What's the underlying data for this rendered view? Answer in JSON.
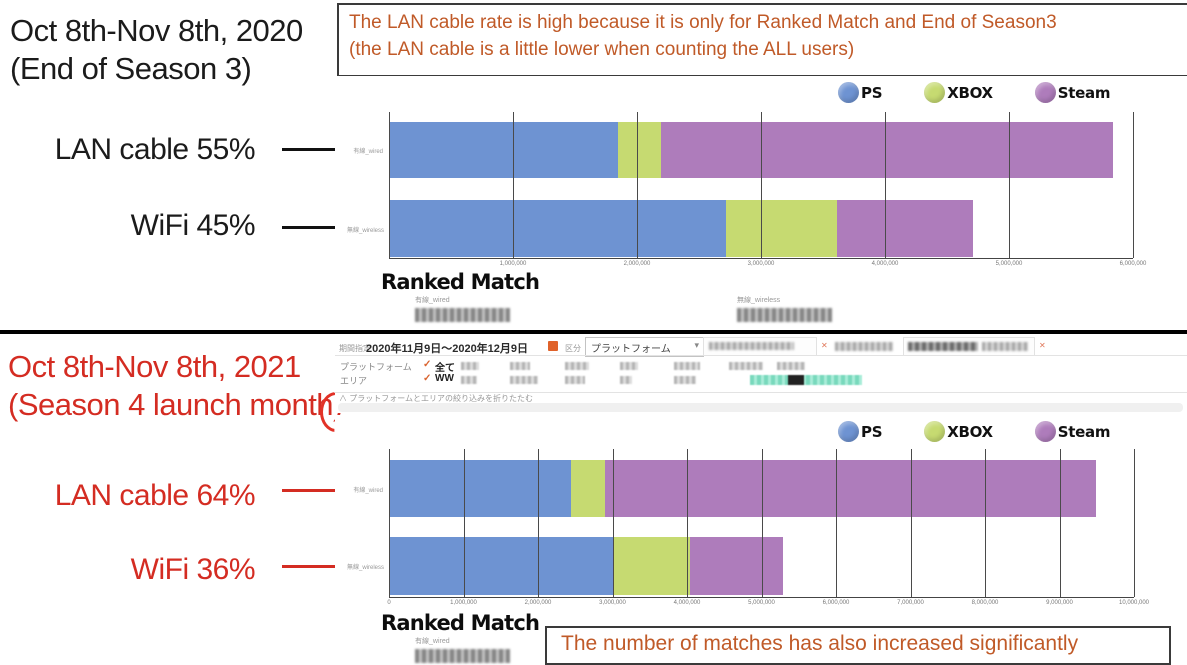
{
  "periods": {
    "p2020": {
      "line1": "Oct 8th-Nov 8th, 2020",
      "line2": "(End of Season 3)"
    },
    "p2021": {
      "line1": "Oct 8th-Nov 8th, 2021",
      "line2": "(Season 4 launch month)"
    }
  },
  "notes": {
    "top_line1": "The LAN cable rate is high because it is only for Ranked Match and End of Season3",
    "top_line2": "(the LAN cable is a little lower when counting the ALL users)",
    "bottom": "The number of matches has also increased significantly"
  },
  "callouts": {
    "lan_2020": "LAN cable 55%",
    "wifi_2020": "WiFi  45%",
    "lan_2021": "LAN cable 64%",
    "wifi_2021": "WiFi  36%"
  },
  "dashboard": {
    "period_label": "期間指定",
    "period_value": "2020年11月9日～2020年12月9日",
    "section_label": "区分",
    "dropdown_value": "プラットフォーム",
    "filters": [
      {
        "label": "プラットフォーム",
        "value": "全て"
      },
      {
        "label": "エリア",
        "value": "WW"
      }
    ],
    "collapse_text": "プラットフォームとエリアの絞り込みを折りたたむ"
  },
  "colors": {
    "ps": "#6E93D2",
    "xbox": "#C6DA71",
    "steam": "#AE7CBB",
    "accent_red": "#D42C22",
    "accent_orange": "#C05A28",
    "teal_highlight": "#8FE3C6"
  },
  "chart_data": [
    {
      "type": "bar",
      "orientation": "horizontal",
      "stacked": true,
      "grid": true,
      "legend_position": "top-right",
      "title": "Ranked Match",
      "period": "Oct 8th-Nov 8th, 2020",
      "categories": [
        "有線_wired",
        "無線_wireless"
      ],
      "series": [
        {
          "name": "PS",
          "color": "#6E93D2",
          "values": [
            1850000,
            2720000
          ]
        },
        {
          "name": "XBOX",
          "color": "#C6DA71",
          "values": [
            340000,
            890000
          ]
        },
        {
          "name": "Steam",
          "color": "#AE7CBB",
          "values": [
            3650000,
            1100000
          ]
        }
      ],
      "x_max": 6000000,
      "x_tick_labels": [
        "",
        "1,000,000",
        "2,000,000",
        "3,000,000",
        "4,000,000",
        "5,000,000",
        "6,000,000"
      ],
      "footer_labels": [
        "有線_wired",
        "無線_wireless"
      ]
    },
    {
      "type": "bar",
      "orientation": "horizontal",
      "stacked": true,
      "grid": true,
      "legend_position": "top-right",
      "title": "Ranked Match",
      "period": "Oct 8th-Nov 8th, 2021",
      "categories": [
        "有線_wired",
        "無線_wireless"
      ],
      "series": [
        {
          "name": "PS",
          "color": "#6E93D2",
          "values": [
            2440000,
            3020000
          ]
        },
        {
          "name": "XBOX",
          "color": "#C6DA71",
          "values": [
            460000,
            1020000
          ]
        },
        {
          "name": "Steam",
          "color": "#AE7CBB",
          "values": [
            6590000,
            1250000
          ]
        }
      ],
      "x_max": 10000000,
      "x_tick_labels": [
        "0",
        "1,000,000",
        "2,000,000",
        "3,000,000",
        "4,000,000",
        "5,000,000",
        "6,000,000",
        "7,000,000",
        "8,000,000",
        "9,000,000",
        "10,000,000"
      ],
      "footer_labels": [
        "有線_wired"
      ]
    }
  ]
}
